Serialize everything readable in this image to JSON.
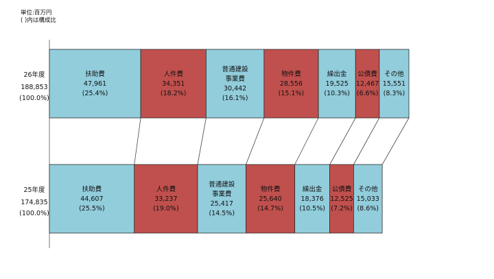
{
  "notes": {
    "unit": "単位:百万円",
    "ratio_note": "(  )内は構成比"
  },
  "chart_data": {
    "type": "bar",
    "orientation": "horizontal-stacked",
    "rows": [
      {
        "year": "26年度",
        "total": "188,853",
        "total_pct": "(100.0%)",
        "segments": [
          {
            "label": [
              "扶助費"
            ],
            "value": 47961,
            "value_label": "47,961",
            "pct": "(25.4%)",
            "color": "#92cddc"
          },
          {
            "label": [
              "人件費"
            ],
            "value": 34351,
            "value_label": "34,351",
            "pct": "(18.2%)",
            "color": "#c0504d"
          },
          {
            "label": [
              "普通建設",
              "事業費"
            ],
            "value": 30442,
            "value_label": "30,442",
            "pct": "(16.1%)",
            "color": "#92cddc"
          },
          {
            "label": [
              "物件費"
            ],
            "value": 28556,
            "value_label": "28,556",
            "pct": "(15.1%)",
            "color": "#c0504d"
          },
          {
            "label": [
              "繰出金"
            ],
            "value": 19525,
            "value_label": "19,525",
            "pct": "(10.3%)",
            "color": "#92cddc"
          },
          {
            "label": [
              "公債費"
            ],
            "value": 12467,
            "value_label": "12,467",
            "pct": "(6.6%)",
            "color": "#c0504d"
          },
          {
            "label": [
              "その他"
            ],
            "value": 15551,
            "value_label": "15,551",
            "pct": "(8.3%)",
            "color": "#92cddc"
          }
        ]
      },
      {
        "year": "25年度",
        "total": "174,835",
        "total_pct": "(100.0%)",
        "segments": [
          {
            "label": [
              "扶助費"
            ],
            "value": 44607,
            "value_label": "44,607",
            "pct": "(25.5%)",
            "color": "#92cddc"
          },
          {
            "label": [
              "人件費"
            ],
            "value": 33237,
            "value_label": "33,237",
            "pct": "(19.0%)",
            "color": "#c0504d"
          },
          {
            "label": [
              "普通建設",
              "事業費"
            ],
            "value": 25417,
            "value_label": "25,417",
            "pct": "(14.5%)",
            "color": "#92cddc"
          },
          {
            "label": [
              "物件費"
            ],
            "value": 25640,
            "value_label": "25,640",
            "pct": "(14.7%)",
            "color": "#c0504d"
          },
          {
            "label": [
              "繰出金"
            ],
            "value": 18376,
            "value_label": "18,376",
            "pct": "(10.5%)",
            "color": "#92cddc"
          },
          {
            "label": [
              "公債費"
            ],
            "value": 12525,
            "value_label": "12,525",
            "pct": "(7.2%)",
            "color": "#c0504d"
          },
          {
            "label": [
              "その他"
            ],
            "value": 15033,
            "value_label": "15,033",
            "pct": "(8.6%)",
            "color": "#92cddc"
          }
        ]
      }
    ],
    "connectors": true
  }
}
